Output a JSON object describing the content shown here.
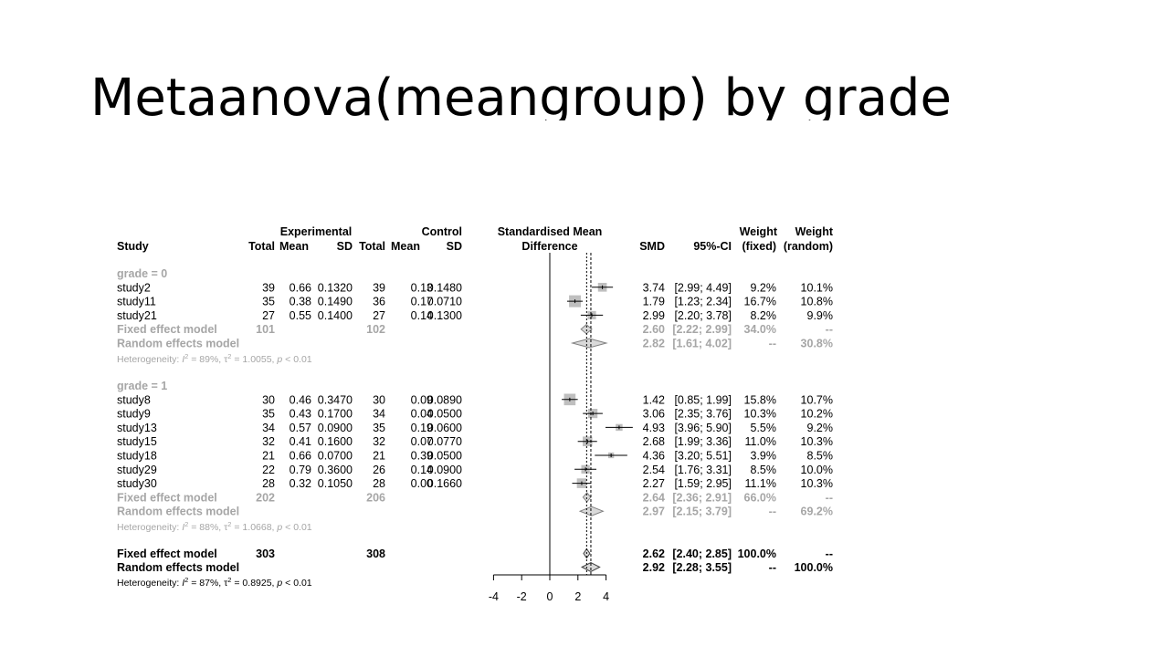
{
  "slide": {
    "title": "Metaanova(meangroup) by grade"
  },
  "chart_data": {
    "type": "forest",
    "headers": {
      "study": "Study",
      "experimental": "Experimental",
      "control": "Control",
      "total": "Total",
      "mean": "Mean",
      "sd": "SD",
      "smd_line1": "Standardised Mean",
      "smd_line2": "Difference",
      "smd": "SMD",
      "ci": "95%-CI",
      "weight": "Weight",
      "fixed": "(fixed)",
      "random": "(random)"
    },
    "xaxis": {
      "ticks": [
        -4,
        -2,
        0,
        2,
        4
      ],
      "tick_labels": [
        "-4",
        "-2",
        "0",
        "2",
        "4"
      ],
      "xlim": [
        -4,
        4
      ],
      "null_line": 0
    },
    "groups": [
      {
        "label": "grade = 0",
        "studies": [
          {
            "name": "study2",
            "n_e": "39",
            "mean_e": "0.66",
            "sd_e": "0.1320",
            "n_c": "39",
            "mean_c": "0.13",
            "sd_c": "0.1480",
            "smd": 3.74,
            "lower": 2.99,
            "upper": 4.49,
            "smd_text": "3.74",
            "ci_text": "[2.99; 4.49]",
            "w_fixed": "9.2%",
            "w_random": "10.1%"
          },
          {
            "name": "study11",
            "n_e": "35",
            "mean_e": "0.38",
            "sd_e": "0.1490",
            "n_c": "36",
            "mean_c": "0.17",
            "sd_c": "0.0710",
            "smd": 1.79,
            "lower": 1.23,
            "upper": 2.34,
            "smd_text": "1.79",
            "ci_text": "[1.23; 2.34]",
            "w_fixed": "16.7%",
            "w_random": "10.8%"
          },
          {
            "name": "study21",
            "n_e": "27",
            "mean_e": "0.55",
            "sd_e": "0.1400",
            "n_c": "27",
            "mean_c": "0.14",
            "sd_c": "0.1300",
            "smd": 2.99,
            "lower": 2.2,
            "upper": 3.78,
            "smd_text": "2.99",
            "ci_text": "[2.20; 3.78]",
            "w_fixed": "8.2%",
            "w_random": "9.9%"
          }
        ],
        "fixed": {
          "label": "Fixed effect model",
          "n_e": "101",
          "n_c": "102",
          "smd": 2.6,
          "lower": 2.22,
          "upper": 2.99,
          "smd_text": "2.60",
          "ci_text": "[2.22; 2.99]",
          "w_fixed": "34.0%",
          "w_random": "--"
        },
        "random": {
          "label": "Random effects model",
          "smd": 2.82,
          "lower": 1.61,
          "upper": 4.02,
          "smd_text": "2.82",
          "ci_text": "[1.61; 4.02]",
          "w_fixed": "--",
          "w_random": "30.8%"
        },
        "heterogeneity": {
          "prefix": "Heterogeneity: ",
          "i2": "= 89%, ",
          "tau2": "= 1.0055, ",
          "p": "< 0.01"
        }
      },
      {
        "label": "grade = 1",
        "studies": [
          {
            "name": "study8",
            "n_e": "30",
            "mean_e": "0.46",
            "sd_e": "0.3470",
            "n_c": "30",
            "mean_c": "0.09",
            "sd_c": "0.0890",
            "smd": 1.42,
            "lower": 0.85,
            "upper": 1.99,
            "smd_text": "1.42",
            "ci_text": "[0.85; 1.99]",
            "w_fixed": "15.8%",
            "w_random": "10.7%"
          },
          {
            "name": "study9",
            "n_e": "35",
            "mean_e": "0.43",
            "sd_e": "0.1700",
            "n_c": "34",
            "mean_c": "0.04",
            "sd_c": "0.0500",
            "smd": 3.06,
            "lower": 2.35,
            "upper": 3.76,
            "smd_text": "3.06",
            "ci_text": "[2.35; 3.76]",
            "w_fixed": "10.3%",
            "w_random": "10.2%"
          },
          {
            "name": "study13",
            "n_e": "34",
            "mean_e": "0.57",
            "sd_e": "0.0900",
            "n_c": "35",
            "mean_c": "0.19",
            "sd_c": "0.0600",
            "smd": 4.93,
            "lower": 3.96,
            "upper": 5.9,
            "smd_text": "4.93",
            "ci_text": "[3.96; 5.90]",
            "w_fixed": "5.5%",
            "w_random": "9.2%"
          },
          {
            "name": "study15",
            "n_e": "32",
            "mean_e": "0.41",
            "sd_e": "0.1600",
            "n_c": "32",
            "mean_c": "0.07",
            "sd_c": "0.0770",
            "smd": 2.68,
            "lower": 1.99,
            "upper": 3.36,
            "smd_text": "2.68",
            "ci_text": "[1.99; 3.36]",
            "w_fixed": "11.0%",
            "w_random": "10.3%"
          },
          {
            "name": "study18",
            "n_e": "21",
            "mean_e": "0.66",
            "sd_e": "0.0700",
            "n_c": "21",
            "mean_c": "0.39",
            "sd_c": "0.0500",
            "smd": 4.36,
            "lower": 3.2,
            "upper": 5.51,
            "smd_text": "4.36",
            "ci_text": "[3.20; 5.51]",
            "w_fixed": "3.9%",
            "w_random": "8.5%"
          },
          {
            "name": "study29",
            "n_e": "22",
            "mean_e": "0.79",
            "sd_e": "0.3600",
            "n_c": "26",
            "mean_c": "0.14",
            "sd_c": "0.0900",
            "smd": 2.54,
            "lower": 1.76,
            "upper": 3.31,
            "smd_text": "2.54",
            "ci_text": "[1.76; 3.31]",
            "w_fixed": "8.5%",
            "w_random": "10.0%"
          },
          {
            "name": "study30",
            "n_e": "28",
            "mean_e": "0.32",
            "sd_e": "0.1050",
            "n_c": "28",
            "mean_c": "0.00",
            "sd_c": "0.1660",
            "smd": 2.27,
            "lower": 1.59,
            "upper": 2.95,
            "smd_text": "2.27",
            "ci_text": "[1.59; 2.95]",
            "w_fixed": "11.1%",
            "w_random": "10.3%"
          }
        ],
        "fixed": {
          "label": "Fixed effect model",
          "n_e": "202",
          "n_c": "206",
          "smd": 2.64,
          "lower": 2.36,
          "upper": 2.91,
          "smd_text": "2.64",
          "ci_text": "[2.36; 2.91]",
          "w_fixed": "66.0%",
          "w_random": "--"
        },
        "random": {
          "label": "Random effects model",
          "smd": 2.97,
          "lower": 2.15,
          "upper": 3.79,
          "smd_text": "2.97",
          "ci_text": "[2.15; 3.79]",
          "w_fixed": "--",
          "w_random": "69.2%"
        },
        "heterogeneity": {
          "prefix": "Heterogeneity: ",
          "i2": "= 88%, ",
          "tau2": "= 1.0668, ",
          "p": "< 0.01"
        }
      }
    ],
    "overall": {
      "fixed": {
        "label": "Fixed effect model",
        "n_e": "303",
        "n_c": "308",
        "smd": 2.62,
        "lower": 2.4,
        "upper": 2.85,
        "smd_text": "2.62",
        "ci_text": "[2.40; 2.85]",
        "w_fixed": "100.0%",
        "w_random": "--"
      },
      "random": {
        "label": "Random effects model",
        "smd": 2.92,
        "lower": 2.28,
        "upper": 3.55,
        "smd_text": "2.92",
        "ci_text": "[2.28; 3.55]",
        "w_fixed": "--",
        "w_random": "100.0%"
      },
      "heterogeneity": {
        "prefix": "Heterogeneity: ",
        "i2": "= 87%, ",
        "tau2": "= 0.8925, ",
        "p": "< 0.01"
      }
    }
  }
}
